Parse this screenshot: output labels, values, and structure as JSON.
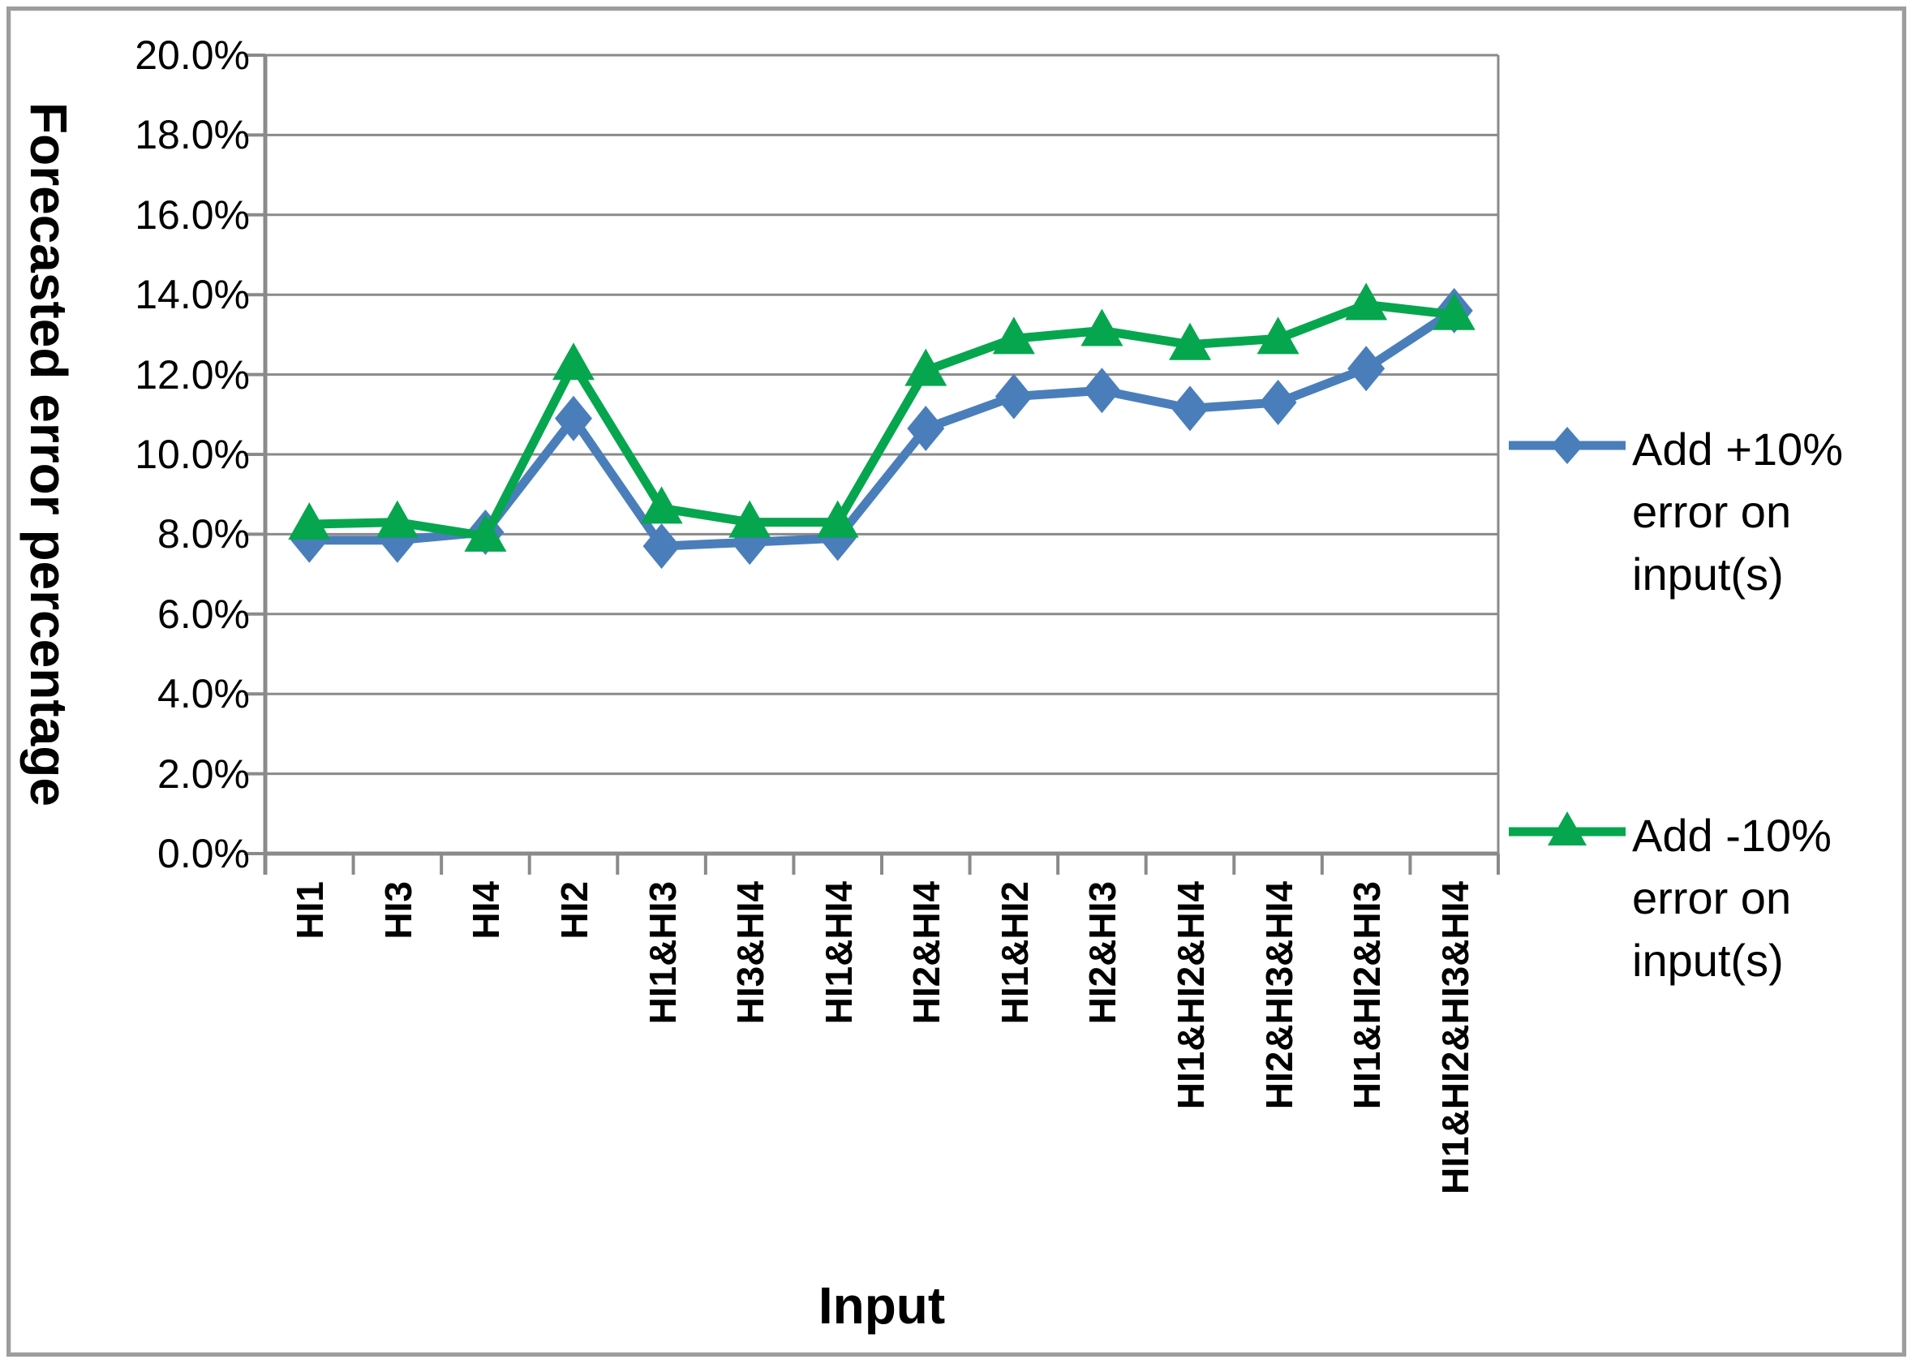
{
  "chart_data": {
    "type": "line",
    "title": "",
    "xlabel": "Input",
    "ylabel": "Forecasted error percentage",
    "categories": [
      "HI1",
      "HI3",
      "HI4",
      "HI2",
      "HI1&HI3",
      "HI3&HI4",
      "HI1&HI4",
      "HI2&HI4",
      "HI1&HI2",
      "HI2&HI3",
      "HI1&HI2&HI4",
      "HI2&HI3&HI4",
      "HI1&HI2&HI3",
      "HI1&HI2&HI3&HI4"
    ],
    "series": [
      {
        "name": "Add +10% error on input(s)",
        "legend_lines": [
          "Add +10%",
          "error on",
          "input(s)"
        ],
        "marker": "diamond",
        "color": "#4A7EBB",
        "values": [
          7.85,
          7.85,
          8.05,
          10.9,
          7.7,
          7.8,
          7.9,
          10.65,
          11.45,
          11.6,
          11.15,
          11.3,
          12.15,
          13.6
        ]
      },
      {
        "name": "Add -10% error on input(s)",
        "legend_lines": [
          "Add -10%",
          "error on",
          "input(s)"
        ],
        "marker": "triangle",
        "color": "#06A64F",
        "values": [
          8.25,
          8.3,
          7.95,
          12.25,
          8.65,
          8.3,
          8.3,
          12.1,
          12.9,
          13.1,
          12.75,
          12.9,
          13.75,
          13.5
        ]
      }
    ],
    "ylim": [
      0,
      20
    ],
    "ytick_step": 2,
    "ytick_labels": [
      "0.0%",
      "2.0%",
      "4.0%",
      "6.0%",
      "8.0%",
      "10.0%",
      "12.0%",
      "14.0%",
      "16.0%",
      "18.0%",
      "20.0%"
    ],
    "grid": true,
    "legend_position": "right",
    "colors": {
      "grid": "#8a8a8a",
      "axis": "#8a8a8a",
      "frame": "#9d9d9d",
      "text": "#000000"
    }
  }
}
